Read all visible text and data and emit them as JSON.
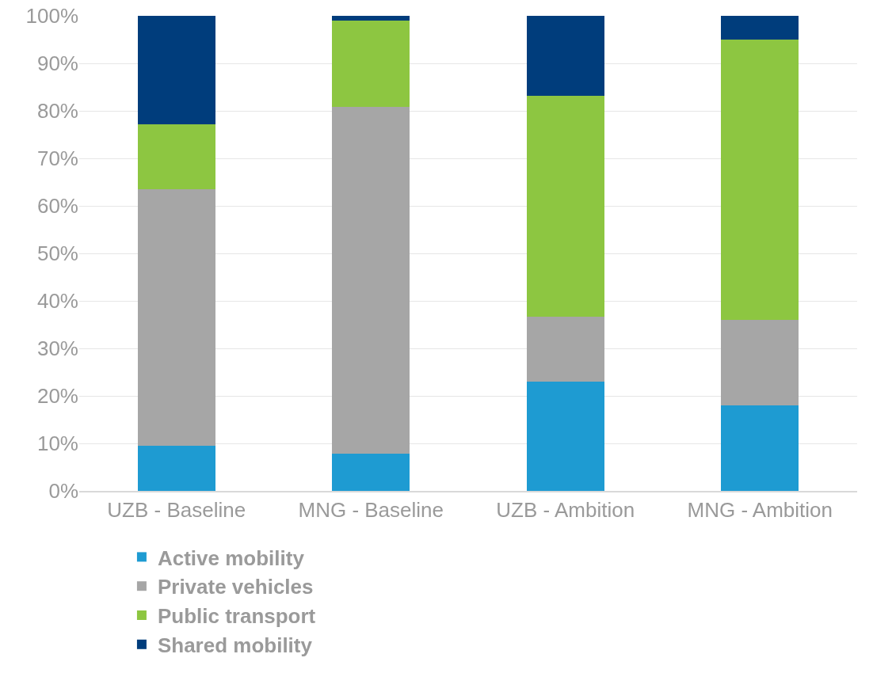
{
  "chart_data": {
    "type": "bar",
    "stacked": true,
    "categories": [
      "UZB - Baseline",
      "MNG - Baseline",
      "UZB - Ambition",
      "MNG - Ambition"
    ],
    "series": [
      {
        "name": "Active mobility",
        "color": "#1e9bd2",
        "values": [
          9.5,
          7.8,
          23,
          18
        ]
      },
      {
        "name": "Private vehicles",
        "color": "#a6a6a6",
        "values": [
          54,
          73,
          13.6,
          18
        ]
      },
      {
        "name": "Public transport",
        "color": "#8dc641",
        "values": [
          13.7,
          18.2,
          46.6,
          59
        ]
      },
      {
        "name": "Shared mobility",
        "color": "#003d7c",
        "values": [
          22.8,
          1,
          16.8,
          5
        ]
      }
    ],
    "ylim": [
      0,
      100
    ],
    "yticks": [
      {
        "value": 0,
        "label": "0%"
      },
      {
        "value": 10,
        "label": "10%"
      },
      {
        "value": 20,
        "label": "20%"
      },
      {
        "value": 30,
        "label": "30%"
      },
      {
        "value": 40,
        "label": "40%"
      },
      {
        "value": 50,
        "label": "50%"
      },
      {
        "value": 60,
        "label": "60%"
      },
      {
        "value": 70,
        "label": "70%"
      },
      {
        "value": 80,
        "label": "80%"
      },
      {
        "value": 90,
        "label": "90%"
      },
      {
        "value": 100,
        "label": "100%"
      }
    ],
    "grid": "y",
    "legend": "bottom"
  }
}
